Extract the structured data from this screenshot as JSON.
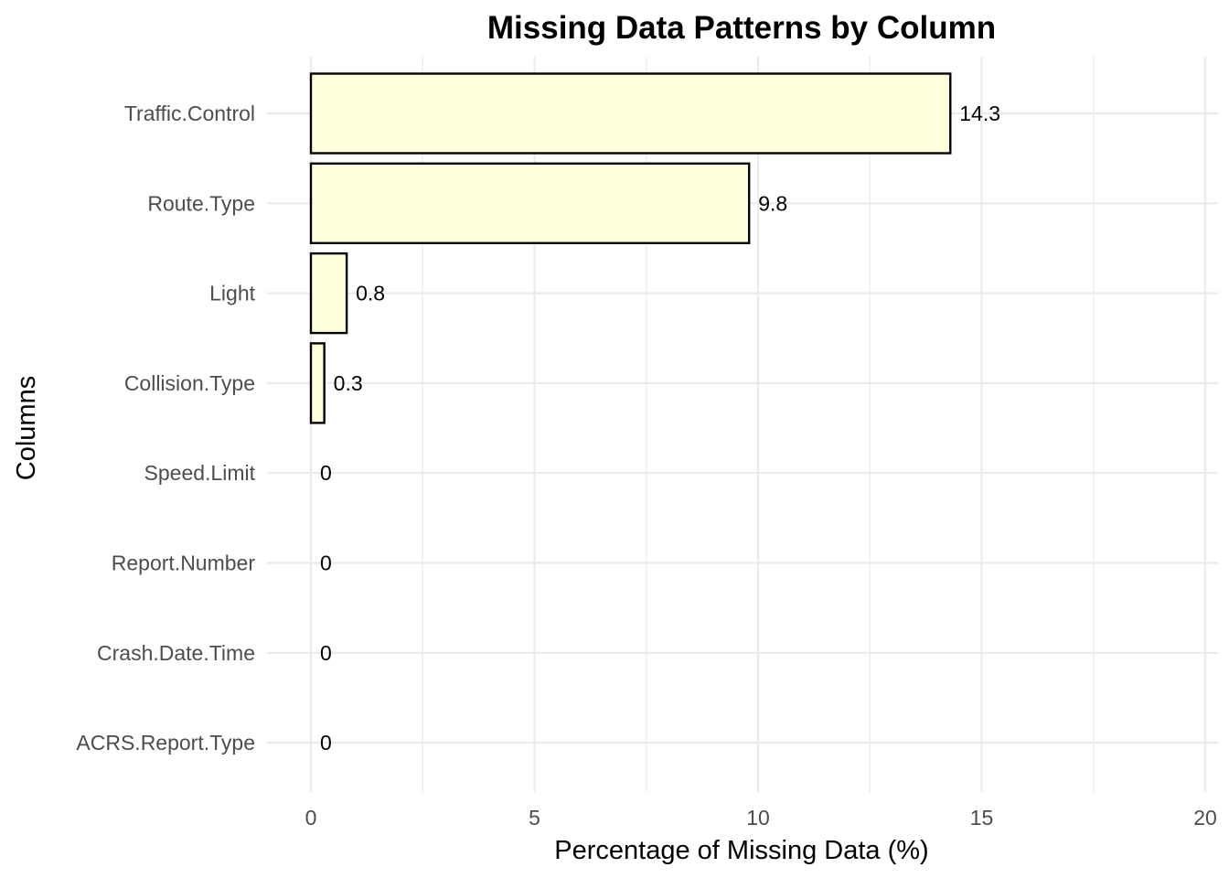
{
  "chart_data": {
    "type": "bar",
    "orientation": "horizontal",
    "title": "Missing Data Patterns by Column",
    "xlabel": "Percentage of Missing Data (%)",
    "ylabel": "Columns",
    "categories": [
      "Traffic.Control",
      "Route.Type",
      "Light",
      "Collision.Type",
      "Speed.Limit",
      "Report.Number",
      "Crash.Date.Time",
      "ACRS.Report.Type"
    ],
    "values": [
      14.3,
      9.8,
      0.8,
      0.3,
      0,
      0,
      0,
      0
    ],
    "data_labels": [
      "14.3",
      "9.8",
      "0.8",
      "0.3",
      "0",
      "0",
      "0",
      "0"
    ],
    "xlim": [
      0,
      20
    ],
    "x_ticks": [
      0,
      5,
      10,
      15,
      20
    ],
    "x_tick_labels": [
      "0",
      "5",
      "10",
      "15",
      "20"
    ],
    "grid": true,
    "bar_fill": "#FFFFDD",
    "bar_stroke": "#000000",
    "grid_color": "#EBEBEB"
  }
}
